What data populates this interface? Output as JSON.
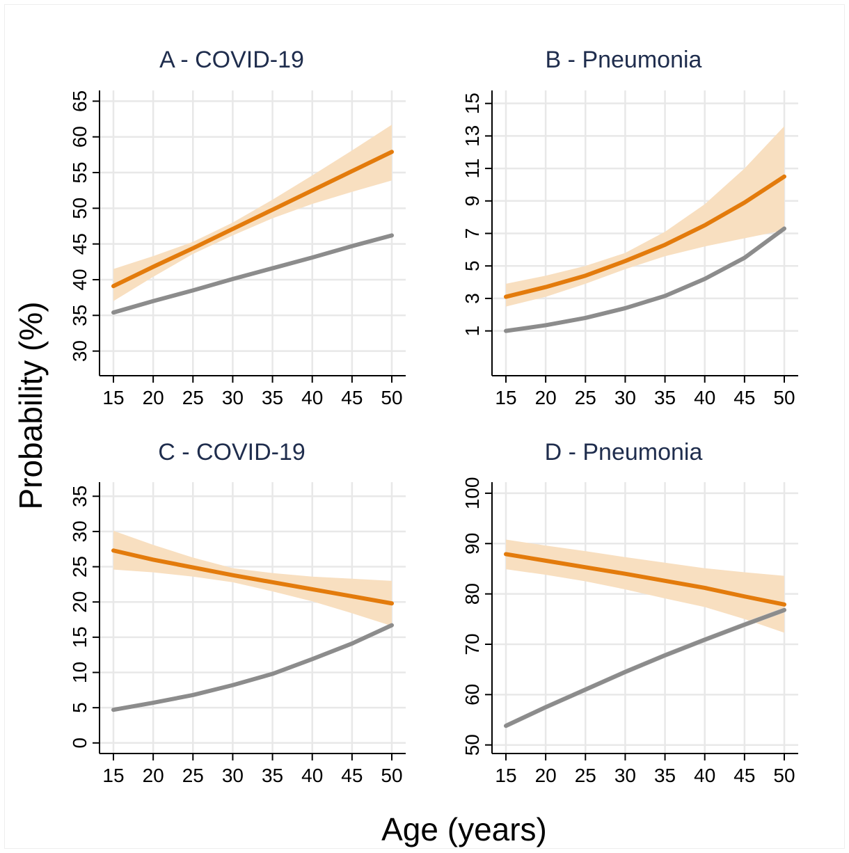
{
  "figure": {
    "ylabel": "Probability (%)",
    "xlabel": "Age (years)"
  },
  "colors": {
    "orange_line": "#e37b0c",
    "orange_band": "#f8dfc0",
    "gray_line": "#8c8c8c",
    "gray_band": "#d8d8d8",
    "grid": "#e8e8e8",
    "title": "#1f2d4d",
    "frame": "#eeeeee"
  },
  "chart_data": [
    {
      "type": "line",
      "title": "A - COVID-19",
      "x": [
        15,
        20,
        25,
        30,
        35,
        40,
        45,
        50
      ],
      "xticks": [
        15,
        20,
        25,
        30,
        35,
        40,
        45,
        50
      ],
      "xlim": [
        15,
        50
      ],
      "ylim": [
        28.5,
        66.5
      ],
      "yticks": [
        30,
        35,
        40,
        45,
        50,
        55,
        60,
        65
      ],
      "grid": true,
      "series": [
        {
          "color": "orange",
          "values": [
            39.1,
            41.8,
            44.4,
            47.1,
            49.8,
            52.5,
            55.2,
            57.9
          ],
          "ci_low": [
            37.0,
            40.4,
            43.6,
            46.2,
            48.6,
            50.6,
            52.3,
            53.9
          ],
          "ci_high": [
            41.5,
            43.3,
            45.3,
            48.0,
            51.2,
            54.6,
            58.1,
            61.7
          ]
        },
        {
          "color": "gray",
          "values": [
            35.4,
            37.0,
            38.5,
            40.1,
            41.6,
            43.1,
            44.7,
            46.2
          ],
          "ci_low": [
            35.2,
            36.8,
            38.3,
            39.9,
            41.4,
            42.9,
            44.5,
            46.0
          ],
          "ci_high": [
            35.6,
            37.2,
            38.7,
            40.3,
            41.8,
            43.3,
            44.9,
            46.4
          ]
        }
      ]
    },
    {
      "type": "line",
      "title": "B - Pneumonia",
      "x": [
        15,
        20,
        25,
        30,
        35,
        40,
        45,
        50
      ],
      "xticks": [
        15,
        20,
        25,
        30,
        35,
        40,
        45,
        50
      ],
      "xlim": [
        15,
        50
      ],
      "ylim": [
        -0.9,
        15.8
      ],
      "yticks": [
        1,
        3,
        5,
        7,
        9,
        11,
        13,
        15
      ],
      "grid": true,
      "series": [
        {
          "color": "orange",
          "values": [
            3.1,
            3.7,
            4.4,
            5.3,
            6.3,
            7.5,
            8.9,
            10.5
          ],
          "ci_low": [
            2.5,
            3.1,
            3.9,
            4.8,
            5.6,
            6.2,
            6.7,
            7.2
          ],
          "ci_high": [
            3.9,
            4.4,
            5.0,
            5.8,
            7.1,
            8.8,
            11.0,
            13.6
          ]
        },
        {
          "color": "gray",
          "values": [
            1.0,
            1.35,
            1.8,
            2.4,
            3.15,
            4.2,
            5.5,
            7.3
          ],
          "ci_low": [
            0.95,
            1.3,
            1.75,
            2.35,
            3.1,
            4.15,
            5.45,
            7.2
          ],
          "ci_high": [
            1.05,
            1.4,
            1.85,
            2.45,
            3.2,
            4.25,
            5.55,
            7.4
          ]
        }
      ]
    },
    {
      "type": "line",
      "title": "C - COVID-19",
      "x": [
        15,
        20,
        25,
        30,
        35,
        40,
        45,
        50
      ],
      "xticks": [
        15,
        20,
        25,
        30,
        35,
        40,
        45,
        50
      ],
      "xlim": [
        15,
        50
      ],
      "ylim": [
        -1.5,
        37.0
      ],
      "yticks": [
        0,
        5,
        10,
        15,
        20,
        25,
        30,
        35
      ],
      "grid": true,
      "series": [
        {
          "color": "orange",
          "values": [
            27.3,
            26.0,
            24.9,
            23.8,
            22.8,
            21.8,
            20.8,
            19.8
          ],
          "ci_low": [
            24.6,
            24.2,
            23.6,
            22.8,
            21.5,
            20.1,
            18.4,
            16.6
          ],
          "ci_high": [
            30.1,
            28.1,
            26.3,
            24.8,
            24.1,
            23.6,
            23.3,
            23.0
          ]
        },
        {
          "color": "gray",
          "values": [
            4.7,
            5.7,
            6.8,
            8.2,
            9.8,
            11.9,
            14.1,
            16.7
          ],
          "ci_low": [
            4.6,
            5.6,
            6.7,
            8.1,
            9.7,
            11.8,
            14.0,
            16.6
          ],
          "ci_high": [
            4.8,
            5.8,
            6.9,
            8.3,
            9.9,
            12.0,
            14.2,
            16.8
          ]
        }
      ]
    },
    {
      "type": "line",
      "title": "D - Pneumonia",
      "x": [
        15,
        20,
        25,
        30,
        35,
        40,
        45,
        50
      ],
      "xticks": [
        15,
        20,
        25,
        30,
        35,
        40,
        45,
        50
      ],
      "xlim": [
        15,
        50
      ],
      "ylim": [
        48.3,
        102.2
      ],
      "yticks": [
        50,
        60,
        70,
        80,
        90,
        100
      ],
      "grid": true,
      "series": [
        {
          "color": "orange",
          "values": [
            87.9,
            86.6,
            85.3,
            84.0,
            82.6,
            81.2,
            79.5,
            77.9
          ],
          "ci_low": [
            84.9,
            83.8,
            82.5,
            80.9,
            79.1,
            77.4,
            75.0,
            72.3
          ],
          "ci_high": [
            90.8,
            89.6,
            88.5,
            87.3,
            86.2,
            85.1,
            84.3,
            83.6
          ]
        },
        {
          "color": "gray",
          "values": [
            53.8,
            57.5,
            61.0,
            64.5,
            67.8,
            70.9,
            73.9,
            76.8
          ],
          "ci_low": [
            53.3,
            57.0,
            60.5,
            64.0,
            67.3,
            70.4,
            73.4,
            76.3
          ],
          "ci_high": [
            54.3,
            58.0,
            61.5,
            65.0,
            68.3,
            71.4,
            74.4,
            77.3
          ]
        }
      ]
    }
  ]
}
